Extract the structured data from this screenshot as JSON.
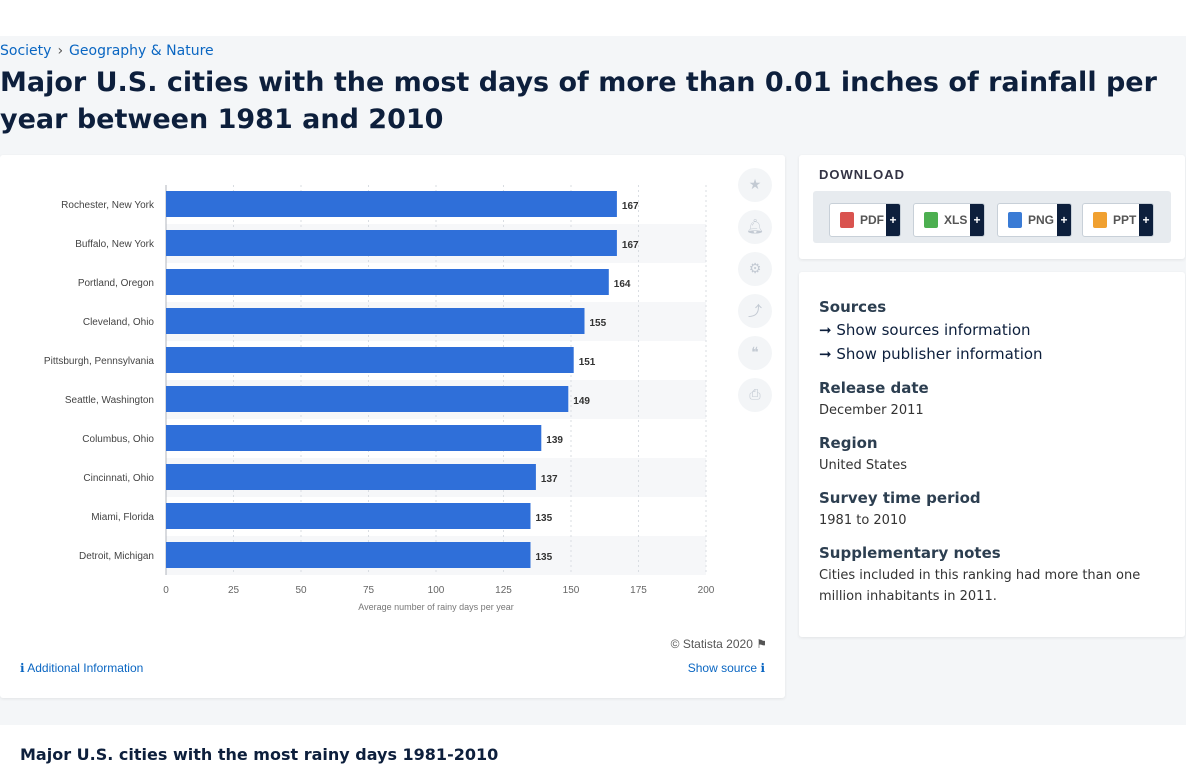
{
  "breadcrumb": {
    "first": "Society",
    "separator": "›",
    "second": "Geography & Nature"
  },
  "page_title": "Major U.S. cities with the most days of more than 0.01 inches of rainfall per year between 1981 and 2010",
  "colors": {
    "bar": "#2f6fd9",
    "accent": "#0a66c2"
  },
  "tools": [
    "star-icon",
    "bell-icon",
    "gear-icon",
    "share-icon",
    "quote-icon",
    "print-icon"
  ],
  "credit": "© Statista 2020",
  "additional_info": "Additional Information",
  "show_source": "Show source",
  "download": {
    "title": "DOWNLOAD",
    "buttons": [
      {
        "label": "PDF",
        "icon": "pdf-icon",
        "color": "#d9534f"
      },
      {
        "label": "XLS",
        "icon": "xls-icon",
        "color": "#4caf50"
      },
      {
        "label": "PNG",
        "icon": "png-icon",
        "color": "#3a7bd5"
      },
      {
        "label": "PPT",
        "icon": "ppt-icon",
        "color": "#f0a030"
      }
    ],
    "plus": "+"
  },
  "info": {
    "sources_heading": "Sources",
    "show_sources": "Show sources information",
    "show_publisher": "Show publisher information",
    "release_heading": "Release date",
    "release_value": "December 2011",
    "region_heading": "Region",
    "region_value": "United States",
    "period_heading": "Survey time period",
    "period_value": "1981 to 2010",
    "notes_heading": "Supplementary notes",
    "notes_value": "Cities included in this ranking had more than one million inhabitants in 2011."
  },
  "bottom_title": "Major U.S. cities with the most rainy days 1981-2010",
  "chart_data": {
    "type": "bar",
    "orientation": "horizontal",
    "categories": [
      "Rochester, New York",
      "Buffalo, New York",
      "Portland, Oregon",
      "Cleveland, Ohio",
      "Pittsburgh, Pennsylvania",
      "Seattle, Washington",
      "Columbus, Ohio",
      "Cincinnati, Ohio",
      "Miami, Florida",
      "Detroit, Michigan"
    ],
    "values": [
      167,
      167,
      164,
      155,
      151,
      149,
      139,
      137,
      135,
      135
    ],
    "xlabel": "Average number of rainy days per year",
    "xlim": [
      0,
      200
    ],
    "xticks": [
      0,
      25,
      50,
      75,
      100,
      125,
      150,
      175,
      200
    ],
    "grid": true
  }
}
